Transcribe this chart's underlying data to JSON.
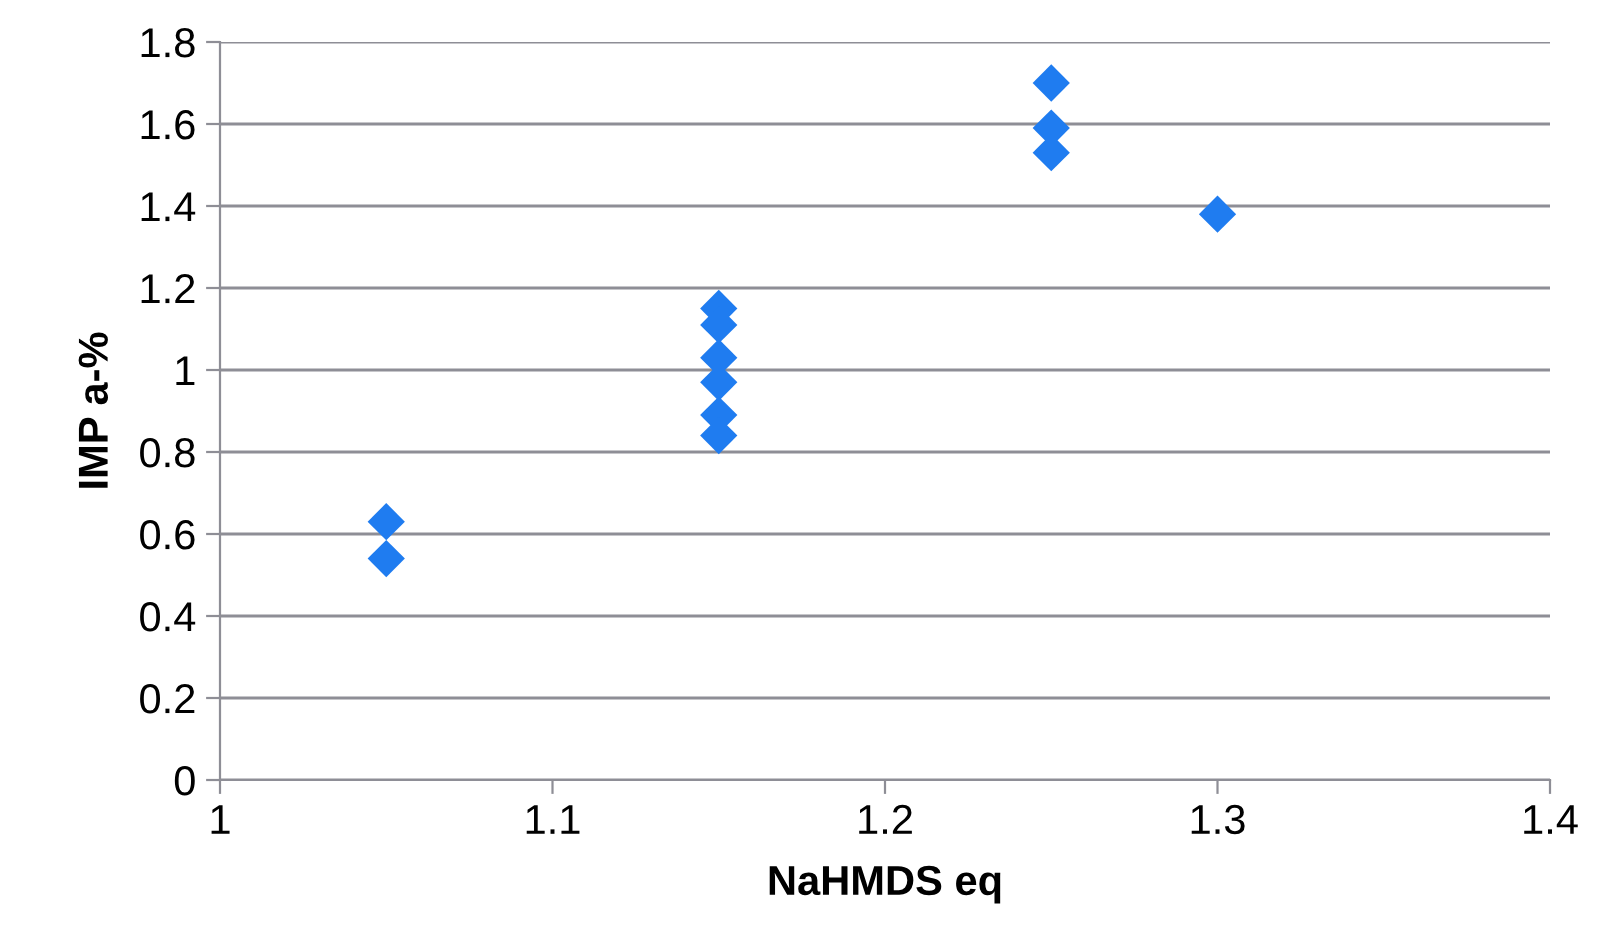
{
  "chart_data": {
    "type": "scatter",
    "xlabel": "NaHMDS eq",
    "ylabel": "IMP a-%",
    "series": [
      {
        "color": "#1f7cf0",
        "x": [
          1.05,
          1.05,
          1.15,
          1.15,
          1.15,
          1.15,
          1.15,
          1.15,
          1.25,
          1.25,
          1.25,
          1.3
        ],
        "values": [
          0.63,
          0.54,
          1.15,
          1.11,
          1.03,
          0.97,
          0.89,
          0.84,
          1.7,
          1.59,
          1.53,
          1.38
        ]
      }
    ],
    "marker": "diamond",
    "xlim": [
      1,
      1.4
    ],
    "xticks": [
      1,
      1.1,
      1.2,
      1.3,
      1.4
    ],
    "ylim": [
      0,
      1.8
    ],
    "yticks": [
      0,
      0.2,
      0.4,
      0.6,
      0.8,
      1,
      1.2,
      1.4,
      1.6,
      1.8
    ],
    "grid": "y",
    "legend": false
  }
}
